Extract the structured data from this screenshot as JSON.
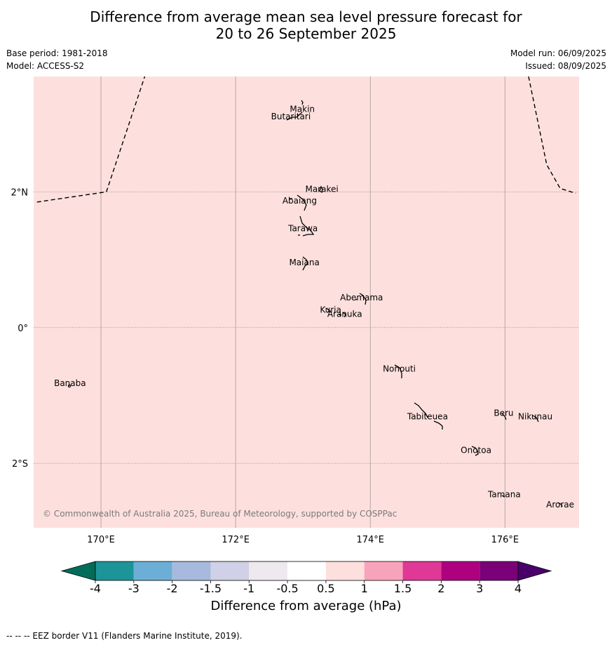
{
  "header": {
    "title_line1": "Difference from average mean sea level pressure forecast for",
    "title_line2": "20 to 26 September 2025",
    "base_period": "Base period: 1981-2018",
    "model": "Model: ACCESS-S2",
    "model_run": "Model run: 06/09/2025",
    "issued": "Issued: 08/09/2025"
  },
  "map": {
    "background_color": "#fde0de",
    "lon_range": [
      169.0,
      177.1
    ],
    "lat_range": [
      -2.95,
      3.7
    ],
    "lon_ticks": [
      {
        "value": 170,
        "label": "170°E"
      },
      {
        "value": 172,
        "label": "172°E"
      },
      {
        "value": 174,
        "label": "174°E"
      },
      {
        "value": 176,
        "label": "176°E"
      }
    ],
    "lat_ticks": [
      {
        "value": 2,
        "label": "2°N"
      },
      {
        "value": 0,
        "label": "0°"
      },
      {
        "value": -2,
        "label": "2°S"
      }
    ],
    "copyright": "© Commonwealth of Australia 2025, Bureau of Meteorology, supported by COSPPac",
    "islands": [
      {
        "name": "Makin",
        "lon": 172.99,
        "lat": 3.18
      },
      {
        "name": "Butaritari",
        "lon": 172.82,
        "lat": 3.07
      },
      {
        "name": "Marakei",
        "lon": 173.28,
        "lat": 2.0
      },
      {
        "name": "Abaiang",
        "lon": 172.95,
        "lat": 1.83
      },
      {
        "name": "Tarawa",
        "lon": 173.0,
        "lat": 1.42
      },
      {
        "name": "Maiana",
        "lon": 173.02,
        "lat": 0.92
      },
      {
        "name": "Abemama",
        "lon": 173.87,
        "lat": 0.4
      },
      {
        "name": "Kuria",
        "lon": 173.41,
        "lat": 0.22
      },
      {
        "name": "Aranuka",
        "lon": 173.62,
        "lat": 0.16
      },
      {
        "name": "Nonouti",
        "lon": 174.43,
        "lat": -0.65
      },
      {
        "name": "Banaba",
        "lon": 169.54,
        "lat": -0.86
      },
      {
        "name": "Tabiteuea",
        "lon": 174.85,
        "lat": -1.35
      },
      {
        "name": "Beru",
        "lon": 175.98,
        "lat": -1.3
      },
      {
        "name": "Nikunau",
        "lon": 176.45,
        "lat": -1.35
      },
      {
        "name": "Onotoa",
        "lon": 175.57,
        "lat": -1.85
      },
      {
        "name": "Tamana",
        "lon": 175.99,
        "lat": -2.5
      },
      {
        "name": "Arorae",
        "lon": 176.82,
        "lat": -2.65
      }
    ],
    "eez_boundaries": [
      [
        [
          169.05,
          1.85
        ],
        [
          170.08,
          2.0
        ],
        [
          170.65,
          3.7
        ]
      ],
      [
        [
          176.35,
          3.7
        ],
        [
          176.62,
          2.4
        ],
        [
          176.82,
          2.05
        ],
        [
          177.05,
          1.98
        ]
      ]
    ]
  },
  "legend": {
    "title": "Difference from average (hPa)",
    "bins": [
      {
        "from": -4,
        "to": -3,
        "color": "#1d9498"
      },
      {
        "from": -3,
        "to": -2,
        "color": "#6caed6"
      },
      {
        "from": -2,
        "to": -1.5,
        "color": "#a7b9dc"
      },
      {
        "from": -1.5,
        "to": -1,
        "color": "#d0d0e6"
      },
      {
        "from": -1,
        "to": -0.5,
        "color": "#ede9ee"
      },
      {
        "from": -0.5,
        "to": 0.5,
        "color": "#ffffff"
      },
      {
        "from": 0.5,
        "to": 1,
        "color": "#fde0de"
      },
      {
        "from": 1,
        "to": 1.5,
        "color": "#f8a3bc"
      },
      {
        "from": 1.5,
        "to": 2,
        "color": "#df3896"
      },
      {
        "from": 2,
        "to": 3,
        "color": "#ae0180"
      },
      {
        "from": 3,
        "to": 4,
        "color": "#7a0177"
      }
    ],
    "low_extend_color": "#006d5b",
    "high_extend_color": "#49006a",
    "tick_labels": [
      "-4",
      "-3",
      "-2",
      "-1.5",
      "-1",
      "-0.5",
      "0.5",
      "1",
      "1.5",
      "2",
      "3",
      "4"
    ]
  },
  "footer": "--  --  -- EEZ border V11 (Flanders Marine Institute, 2019)."
}
